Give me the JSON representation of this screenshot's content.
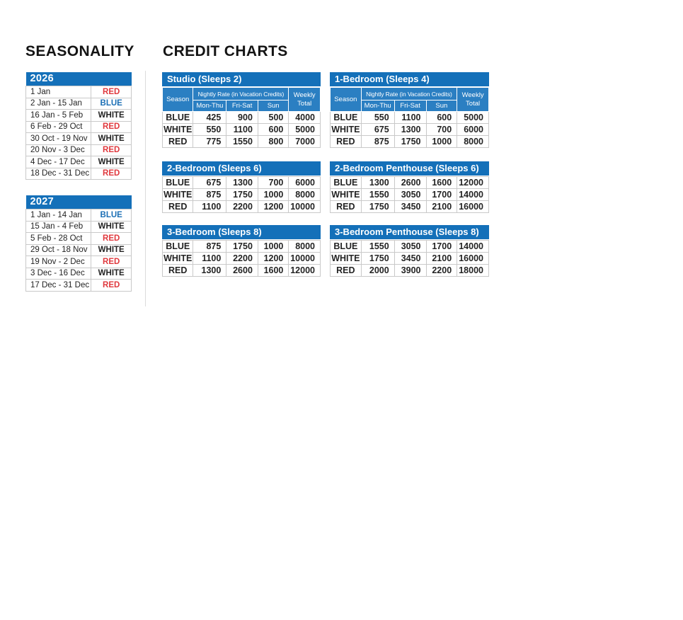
{
  "headings": {
    "seasonality": "SEASONALITY",
    "credit_charts": "CREDIT CHARTS"
  },
  "colors": {
    "header_blue": "#1470B9",
    "subheader_blue": "#2B7FC2",
    "red_text": "#E0393E",
    "blue_text": "#1B6FB5",
    "dark_text": "#232323",
    "cell_border": "#C9C9C9"
  },
  "season_tables": [
    {
      "year": "2026",
      "rows": [
        {
          "range": "1 Jan",
          "season": "RED"
        },
        {
          "range": "2 Jan - 15 Jan",
          "season": "BLUE"
        },
        {
          "range": "16 Jan - 5 Feb",
          "season": "WHITE"
        },
        {
          "range": "6 Feb - 29 Oct",
          "season": "RED"
        },
        {
          "range": "30 Oct - 19 Nov",
          "season": "WHITE"
        },
        {
          "range": "20 Nov - 3 Dec",
          "season": "RED"
        },
        {
          "range": "4 Dec - 17 Dec",
          "season": "WHITE"
        },
        {
          "range": "18 Dec - 31 Dec",
          "season": "RED"
        }
      ]
    },
    {
      "year": "2027",
      "rows": [
        {
          "range": "1 Jan - 14 Jan",
          "season": "BLUE"
        },
        {
          "range": "15 Jan - 4 Feb",
          "season": "WHITE"
        },
        {
          "range": "5 Feb - 28 Oct",
          "season": "RED"
        },
        {
          "range": "29 Oct - 18 Nov",
          "season": "WHITE"
        },
        {
          "range": "19 Nov - 2 Dec",
          "season": "RED"
        },
        {
          "range": "3 Dec - 16 Dec",
          "season": "WHITE"
        },
        {
          "range": "17 Dec - 31 Dec",
          "season": "RED"
        }
      ]
    }
  ],
  "credit_header": {
    "season": "Season",
    "nightly_rate": "Nightly Rate (in Vacation Credits)",
    "day_cols": [
      "Mon-Thu",
      "Fri-Sat",
      "Sun"
    ],
    "weekly_total": "Weekly Total"
  },
  "credit_tables": [
    {
      "title": "Studio (Sleeps 2)",
      "rows": [
        {
          "season": "BLUE",
          "mon_thu": 425,
          "fri_sat": 900,
          "sun": 500,
          "weekly": 4000
        },
        {
          "season": "WHITE",
          "mon_thu": 550,
          "fri_sat": 1100,
          "sun": 600,
          "weekly": 5000
        },
        {
          "season": "RED",
          "mon_thu": 775,
          "fri_sat": 1550,
          "sun": 800,
          "weekly": 7000
        }
      ]
    },
    {
      "title": "1-Bedroom (Sleeps 4)",
      "rows": [
        {
          "season": "BLUE",
          "mon_thu": 550,
          "fri_sat": 1100,
          "sun": 600,
          "weekly": 5000
        },
        {
          "season": "WHITE",
          "mon_thu": 675,
          "fri_sat": 1300,
          "sun": 700,
          "weekly": 6000
        },
        {
          "season": "RED",
          "mon_thu": 875,
          "fri_sat": 1750,
          "sun": 1000,
          "weekly": 8000
        }
      ]
    },
    {
      "title": "2-Bedroom (Sleeps 6)",
      "rows": [
        {
          "season": "BLUE",
          "mon_thu": 675,
          "fri_sat": 1300,
          "sun": 700,
          "weekly": 6000
        },
        {
          "season": "WHITE",
          "mon_thu": 875,
          "fri_sat": 1750,
          "sun": 1000,
          "weekly": 8000
        },
        {
          "season": "RED",
          "mon_thu": 1100,
          "fri_sat": 2200,
          "sun": 1200,
          "weekly": 10000
        }
      ]
    },
    {
      "title": "2-Bedroom Penthouse (Sleeps 6)",
      "rows": [
        {
          "season": "BLUE",
          "mon_thu": 1300,
          "fri_sat": 2600,
          "sun": 1600,
          "weekly": 12000
        },
        {
          "season": "WHITE",
          "mon_thu": 1550,
          "fri_sat": 3050,
          "sun": 1700,
          "weekly": 14000
        },
        {
          "season": "RED",
          "mon_thu": 1750,
          "fri_sat": 3450,
          "sun": 2100,
          "weekly": 16000
        }
      ]
    },
    {
      "title": "3-Bedroom (Sleeps 8)",
      "rows": [
        {
          "season": "BLUE",
          "mon_thu": 875,
          "fri_sat": 1750,
          "sun": 1000,
          "weekly": 8000
        },
        {
          "season": "WHITE",
          "mon_thu": 1100,
          "fri_sat": 2200,
          "sun": 1200,
          "weekly": 10000
        },
        {
          "season": "RED",
          "mon_thu": 1300,
          "fri_sat": 2600,
          "sun": 1600,
          "weekly": 12000
        }
      ]
    },
    {
      "title": "3-Bedroom Penthouse (Sleeps 8)",
      "rows": [
        {
          "season": "BLUE",
          "mon_thu": 1550,
          "fri_sat": 3050,
          "sun": 1700,
          "weekly": 14000
        },
        {
          "season": "WHITE",
          "mon_thu": 1750,
          "fri_sat": 3450,
          "sun": 2100,
          "weekly": 16000
        },
        {
          "season": "RED",
          "mon_thu": 2000,
          "fri_sat": 3900,
          "sun": 2200,
          "weekly": 18000
        }
      ]
    }
  ]
}
